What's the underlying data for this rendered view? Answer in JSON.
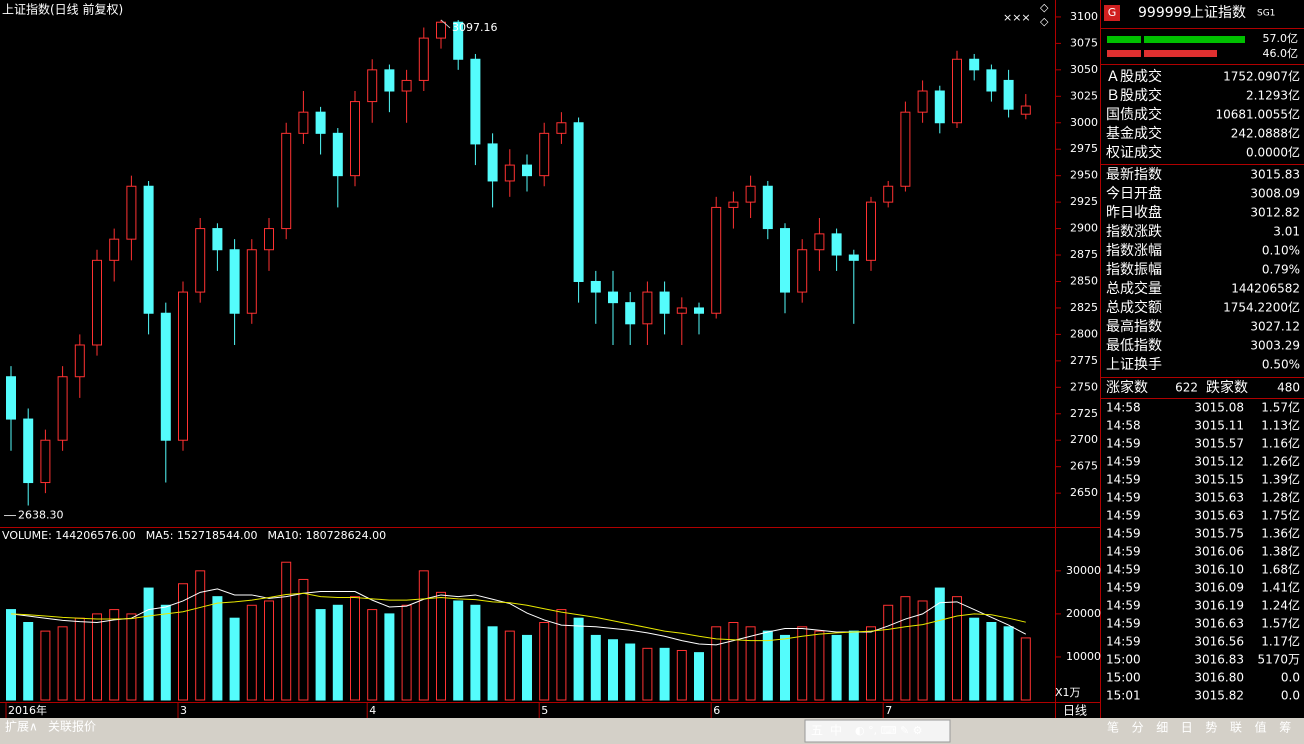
{
  "chart_data": [
    {
      "type": "candlestick",
      "title": "上证指数(日线 前复权)",
      "ylim": [
        2618,
        3116
      ],
      "yticks": [
        2650,
        2675,
        2700,
        2725,
        2750,
        2775,
        2800,
        2825,
        2850,
        2875,
        2900,
        2925,
        2950,
        2975,
        3000,
        3025,
        3050,
        3075,
        3100
      ],
      "up_color": "#ff3232",
      "down_color": "#54fcfc",
      "high_label": "3097.16",
      "low_label": "2638.30",
      "categories": [
        "2016年",
        null,
        null,
        null,
        null,
        null,
        null,
        null,
        null,
        null,
        "3",
        null,
        null,
        null,
        null,
        null,
        null,
        null,
        null,
        null,
        null,
        "4",
        null,
        null,
        null,
        null,
        null,
        null,
        null,
        null,
        null,
        "5",
        null,
        null,
        null,
        null,
        null,
        null,
        null,
        null,
        null,
        "6",
        null,
        null,
        null,
        null,
        null,
        null,
        null,
        null,
        null,
        "7",
        null,
        null,
        null,
        null,
        null,
        null,
        null,
        null
      ],
      "ohlc": [
        [
          2760,
          2770,
          2690,
          2720
        ],
        [
          2720,
          2730,
          2638.3,
          2660
        ],
        [
          2660,
          2710,
          2650,
          2700
        ],
        [
          2700,
          2770,
          2690,
          2760
        ],
        [
          2760,
          2800,
          2740,
          2790
        ],
        [
          2790,
          2880,
          2780,
          2870
        ],
        [
          2870,
          2900,
          2850,
          2890
        ],
        [
          2890,
          2950,
          2870,
          2940
        ],
        [
          2940,
          2945,
          2800,
          2820
        ],
        [
          2820,
          2830,
          2660,
          2700
        ],
        [
          2700,
          2850,
          2690,
          2840
        ],
        [
          2840,
          2910,
          2830,
          2900
        ],
        [
          2900,
          2905,
          2860,
          2880
        ],
        [
          2880,
          2890,
          2790,
          2820
        ],
        [
          2820,
          2890,
          2810,
          2880
        ],
        [
          2880,
          2910,
          2860,
          2900
        ],
        [
          2900,
          3000,
          2890,
          2990
        ],
        [
          2990,
          3030,
          2980,
          3010
        ],
        [
          3010,
          3015,
          2970,
          2990
        ],
        [
          2990,
          2995,
          2920,
          2950
        ],
        [
          2950,
          3030,
          2940,
          3020
        ],
        [
          3020,
          3060,
          3000,
          3050
        ],
        [
          3050,
          3055,
          3010,
          3030
        ],
        [
          3030,
          3050,
          3000,
          3040
        ],
        [
          3040,
          3090,
          3030,
          3080
        ],
        [
          3080,
          3097.16,
          3070,
          3095
        ],
        [
          3095,
          3097,
          3050,
          3060
        ],
        [
          3060,
          3065,
          2960,
          2980
        ],
        [
          2980,
          2990,
          2920,
          2945
        ],
        [
          2945,
          2975,
          2930,
          2960
        ],
        [
          2960,
          2970,
          2935,
          2950
        ],
        [
          2950,
          3000,
          2940,
          2990
        ],
        [
          2990,
          3010,
          2980,
          3000
        ],
        [
          3000,
          3005,
          2830,
          2850
        ],
        [
          2850,
          2860,
          2810,
          2840
        ],
        [
          2840,
          2860,
          2790,
          2830
        ],
        [
          2830,
          2840,
          2790,
          2810
        ],
        [
          2810,
          2850,
          2790,
          2840
        ],
        [
          2840,
          2850,
          2800,
          2820
        ],
        [
          2820,
          2835,
          2790,
          2825
        ],
        [
          2825,
          2830,
          2800,
          2820
        ],
        [
          2820,
          2930,
          2815,
          2920
        ],
        [
          2920,
          2935,
          2900,
          2925
        ],
        [
          2925,
          2950,
          2910,
          2940
        ],
        [
          2940,
          2945,
          2890,
          2900
        ],
        [
          2900,
          2905,
          2820,
          2840
        ],
        [
          2840,
          2890,
          2830,
          2880
        ],
        [
          2880,
          2910,
          2860,
          2895
        ],
        [
          2895,
          2900,
          2860,
          2875
        ],
        [
          2875,
          2880,
          2810,
          2870
        ],
        [
          2870,
          2930,
          2860,
          2925
        ],
        [
          2925,
          2945,
          2920,
          2940
        ],
        [
          2940,
          3020,
          2935,
          3010
        ],
        [
          3010,
          3040,
          3000,
          3030
        ],
        [
          3030,
          3035,
          2990,
          3000
        ],
        [
          3000,
          3068,
          2995,
          3060
        ],
        [
          3060,
          3065,
          3040,
          3050
        ],
        [
          3050,
          3055,
          3020,
          3030
        ],
        [
          3040,
          3050,
          3005,
          3012.82
        ],
        [
          3008.09,
          3027.12,
          3003.29,
          3015.83
        ]
      ]
    },
    {
      "type": "volume",
      "unit": "X1万",
      "ylim": [
        0,
        36000
      ],
      "yticks": [
        10000,
        20000,
        30000
      ],
      "up_color": "#ff3232",
      "down_color": "#54fcfc",
      "series": [
        {
          "name": "VOLUME: 144206576.00",
          "color": "#ffffff",
          "values": [
            21000,
            18000,
            16000,
            17000,
            19000,
            20000,
            21000,
            20000,
            26000,
            22000,
            27000,
            30000,
            24000,
            19000,
            22000,
            23000,
            32000,
            28000,
            21000,
            22000,
            24000,
            21000,
            20000,
            22000,
            30000,
            25000,
            23000,
            22000,
            17000,
            16000,
            15000,
            18000,
            21000,
            19000,
            15000,
            14000,
            13000,
            12000,
            12000,
            11500,
            11000,
            17000,
            18000,
            17000,
            16000,
            15000,
            17000,
            16000,
            15000,
            16000,
            17000,
            22000,
            24000,
            23000,
            26000,
            24000,
            19000,
            18000,
            17000,
            14420.6576
          ]
        },
        {
          "name": "MA5: 152718544.00",
          "color": "#ffffff",
          "values": [
            20000,
            19500,
            19000,
            18500,
            18200,
            18000,
            18600,
            19000,
            21000,
            21600,
            23000,
            25000,
            25800,
            24400,
            24400,
            23600,
            24000,
            24800,
            25200,
            25200,
            25200,
            23200,
            21600,
            21800,
            23400,
            24400,
            24000,
            24400,
            23400,
            22400,
            20200,
            18600,
            17400,
            17200,
            17000,
            16600,
            16200,
            15600,
            14800,
            13800,
            13000,
            12800,
            13800,
            14800,
            15800,
            16600,
            16600,
            16200,
            15800,
            15800,
            15800,
            17200,
            18800,
            20000,
            22600,
            22800,
            21000,
            19200,
            17400,
            15271.8544
          ]
        },
        {
          "name": "MA10: 180728624.00",
          "color": "#e8e800",
          "values": [
            20000,
            19800,
            19500,
            19200,
            19000,
            18800,
            18800,
            18900,
            19500,
            20000,
            20500,
            21500,
            22500,
            22800,
            23200,
            23800,
            24500,
            24800,
            24000,
            23800,
            23800,
            23500,
            23200,
            23200,
            23500,
            23800,
            23500,
            23300,
            22800,
            22600,
            22000,
            21200,
            20400,
            19800,
            19200,
            18400,
            17600,
            16800,
            16000,
            15500,
            14800,
            14200,
            14000,
            13800,
            13800,
            14200,
            14800,
            15300,
            15600,
            15800,
            16000,
            16400,
            17000,
            17500,
            18500,
            19500,
            20000,
            19800,
            19000,
            18072.8624
          ]
        }
      ]
    }
  ],
  "sidebar": {
    "badge": "G",
    "code": "999999",
    "name": "上证指数",
    "tag": "SG1",
    "buy": "57.0亿",
    "sell": "46.0亿",
    "turnover": [
      {
        "label": "Ａ股成交",
        "value": "1752.0907亿",
        "color": "#e8e800"
      },
      {
        "label": "Ｂ股成交",
        "value": "2.1293亿",
        "color": "#e8e800"
      },
      {
        "label": "国债成交",
        "value": "10681.0055亿",
        "color": "#e8e800"
      },
      {
        "label": "基金成交",
        "value": "242.0888亿",
        "color": "#e8e800"
      },
      {
        "label": "权证成交",
        "value": "0.0000亿",
        "color": "#e8e800"
      }
    ],
    "index": [
      {
        "label": "最新指数",
        "value": "3015.83",
        "color": "#ff3232"
      },
      {
        "label": "今日开盘",
        "value": "3008.09",
        "color": "#00e600"
      },
      {
        "label": "昨日收盘",
        "value": "3012.82",
        "color": "#ffffff"
      },
      {
        "label": "指数涨跌",
        "value": "3.01",
        "color": "#ff3232"
      },
      {
        "label": "指数涨幅",
        "value": "0.10%",
        "color": "#ff3232"
      },
      {
        "label": "指数振幅",
        "value": "0.79%",
        "color": "#ffffff"
      },
      {
        "label": "总成交量",
        "value": "144206582",
        "color": "#e8e800"
      },
      {
        "label": "总成交额",
        "value": "1754.2200亿",
        "color": "#e8e800"
      },
      {
        "label": "最高指数",
        "value": "3027.12",
        "color": "#ff3232"
      },
      {
        "label": "最低指数",
        "value": "3003.29",
        "color": "#00e600"
      },
      {
        "label": "上证换手",
        "value": "0.50%",
        "color": "#ffffff"
      }
    ],
    "breadth": {
      "up_label": "涨家数",
      "up": 622,
      "down_label": "跌家数",
      "down": 480
    },
    "ticks": [
      [
        "14:58",
        "3015.08",
        "1.57亿"
      ],
      [
        "14:58",
        "3015.11",
        "1.13亿"
      ],
      [
        "14:59",
        "3015.57",
        "1.16亿"
      ],
      [
        "14:59",
        "3015.12",
        "1.26亿"
      ],
      [
        "14:59",
        "3015.15",
        "1.39亿"
      ],
      [
        "14:59",
        "3015.63",
        "1.28亿"
      ],
      [
        "14:59",
        "3015.63",
        "1.75亿"
      ],
      [
        "14:59",
        "3015.75",
        "1.36亿"
      ],
      [
        "14:59",
        "3016.06",
        "1.38亿"
      ],
      [
        "14:59",
        "3016.10",
        "1.68亿"
      ],
      [
        "14:59",
        "3016.09",
        "1.41亿"
      ],
      [
        "14:59",
        "3016.19",
        "1.24亿"
      ],
      [
        "14:59",
        "3016.63",
        "1.57亿"
      ],
      [
        "14:59",
        "3016.56",
        "1.17亿"
      ],
      [
        "15:00",
        "3016.83",
        "5170万"
      ],
      [
        "15:00",
        "3016.80",
        "0.0"
      ],
      [
        "15:01",
        "3015.82",
        "0.0"
      ]
    ]
  },
  "footer": {
    "left": [
      "扩展∧",
      "关联报价"
    ],
    "period": "日线",
    "ime": [
      "五",
      "中"
    ],
    "tabs": [
      "笔",
      "分",
      "细",
      "日",
      "势",
      "联",
      "值",
      "筹"
    ]
  }
}
